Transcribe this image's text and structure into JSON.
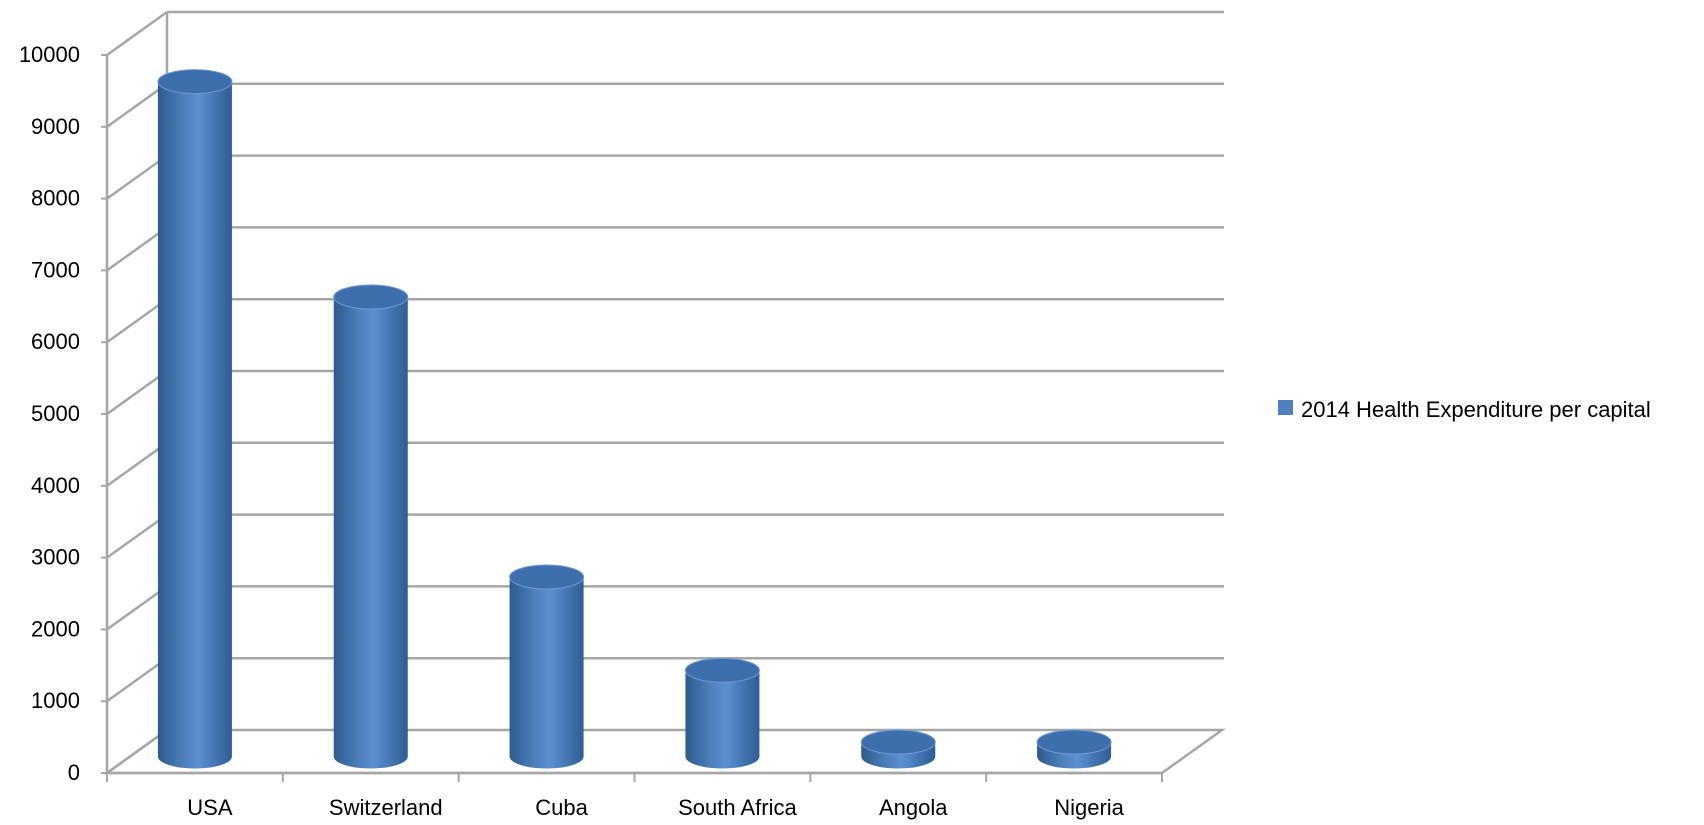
{
  "chart_data": {
    "type": "bar",
    "style": "3d-cylinder",
    "title": "",
    "xlabel": "",
    "ylabel": "",
    "categories": [
      "USA",
      "Switzerland",
      "Cuba",
      "South Africa",
      "Angola",
      "Nigeria"
    ],
    "series": [
      {
        "name": "2014 Health Expenditure per capital",
        "values": [
          9400,
          6400,
          2500,
          1200,
          200,
          200
        ],
        "color": "#4F81BD"
      }
    ],
    "ylim": [
      0,
      10000
    ],
    "yticks": [
      "0",
      "1000",
      "2000",
      "3000",
      "4000",
      "5000",
      "6000",
      "7000",
      "8000",
      "9000",
      "10000"
    ],
    "grid": true,
    "legend_position": "right"
  }
}
